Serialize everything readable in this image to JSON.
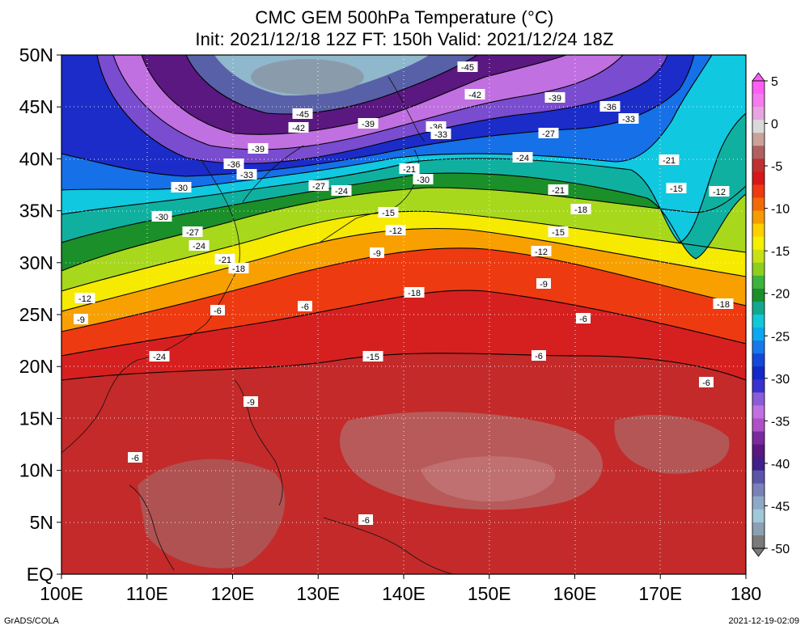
{
  "title": {
    "line1": "CMC GEM 500hPa Temperature (°C)",
    "line2": "Init: 2021/12/18 12Z  FT: 150h  Valid: 2021/12/24 18Z"
  },
  "axes": {
    "lon_labels": [
      "100E",
      "110E",
      "120E",
      "130E",
      "140E",
      "150E",
      "160E",
      "170E",
      "180"
    ],
    "lat_labels": [
      "50N",
      "45N",
      "40N",
      "35N",
      "30N",
      "25N",
      "20N",
      "15N",
      "10N",
      "5N",
      "EQ"
    ]
  },
  "colorbar": {
    "labels": [
      "5",
      "0",
      "-5",
      "-10",
      "-15",
      "-20",
      "-25",
      "-30",
      "-35",
      "-40",
      "-45",
      "-50"
    ],
    "colors": [
      "#ff5ef5",
      "#f57cf0",
      "#e8a4e0",
      "#d9d9d9",
      "#c9a29a",
      "#b06060",
      "#c03030",
      "#d61818",
      "#ee3a10",
      "#f26a08",
      "#f59c00",
      "#ffd000",
      "#f5f000",
      "#c8e018",
      "#8ccf1e",
      "#3cb43c",
      "#1b8f2a",
      "#12a890",
      "#10c8d8",
      "#0aa8f0",
      "#1778ea",
      "#1448d8",
      "#1228c8",
      "#3a30d0",
      "#8a5cd8",
      "#c070e0",
      "#b050c8",
      "#7a2aa0",
      "#5a1880",
      "#40208a",
      "#5a55a8",
      "#7a80b8",
      "#90a8c8",
      "#a0c8d8",
      "#8ca0b4",
      "#7a7a7a"
    ]
  },
  "contour_labels": [
    "-45",
    "-42",
    "-39",
    "-36",
    "-33",
    "-45",
    "-42",
    "-39",
    "-36",
    "-33",
    "-39",
    "-36",
    "-33",
    "-30",
    "-27",
    "-24",
    "-21",
    "-30",
    "-27",
    "-24",
    "-21",
    "-30",
    "-27",
    "-24",
    "-21",
    "-18",
    "-15",
    "-12",
    "-9",
    "-6",
    "-18",
    "-15",
    "-12",
    "-9",
    "-6",
    "-24",
    "-21",
    "-18",
    "-15",
    "-12",
    "-9",
    "-6",
    "-18",
    "-15",
    "-12",
    "-9",
    "-6",
    "-6",
    "-6",
    "-6"
  ],
  "footer": {
    "credit": "GrADS/COLA",
    "timestamp": "2021-12-19-02:09"
  },
  "palette": {
    "deep_cold": "#3a3a8a",
    "cold": "#1448d8",
    "mid": "#1b8f2a",
    "warm": "#f5f000",
    "hot": "#d61818",
    "tropical": "#b05050"
  }
}
